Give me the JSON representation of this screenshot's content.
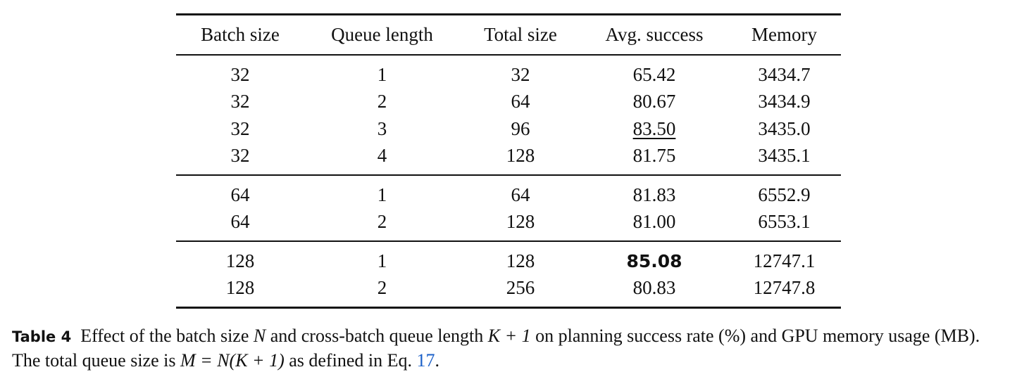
{
  "table": {
    "headers": [
      "Batch size",
      "Queue length",
      "Total size",
      "Avg. success",
      "Memory"
    ],
    "groups": [
      [
        [
          "32",
          "1",
          "32",
          "65.42",
          "3434.7"
        ],
        [
          "32",
          "2",
          "64",
          "80.67",
          "3434.9"
        ],
        [
          "32",
          "3",
          "96",
          "83.50",
          "3435.0"
        ],
        [
          "32",
          "4",
          "128",
          "81.75",
          "3435.1"
        ]
      ],
      [
        [
          "64",
          "1",
          "64",
          "81.83",
          "6552.9"
        ],
        [
          "64",
          "2",
          "128",
          "81.00",
          "6553.1"
        ]
      ],
      [
        [
          "128",
          "1",
          "128",
          "85.08",
          "12747.1"
        ],
        [
          "128",
          "2",
          "256",
          "80.83",
          "12747.8"
        ]
      ]
    ],
    "underlined_cell": "83.50",
    "bold_cell": "85.08"
  },
  "caption": {
    "label": "Table 4",
    "part1": "Effect of the batch size ",
    "var_n": "N",
    "part2": " and cross-batch queue length ",
    "expr_k": "K + 1",
    "part3": " on planning success rate (%) and GPU memory usage (MB). The total queue size is ",
    "expr_m": "M = N(K + 1)",
    "part4": " as defined in Eq. ",
    "eq_ref": "17",
    "part5": "."
  }
}
